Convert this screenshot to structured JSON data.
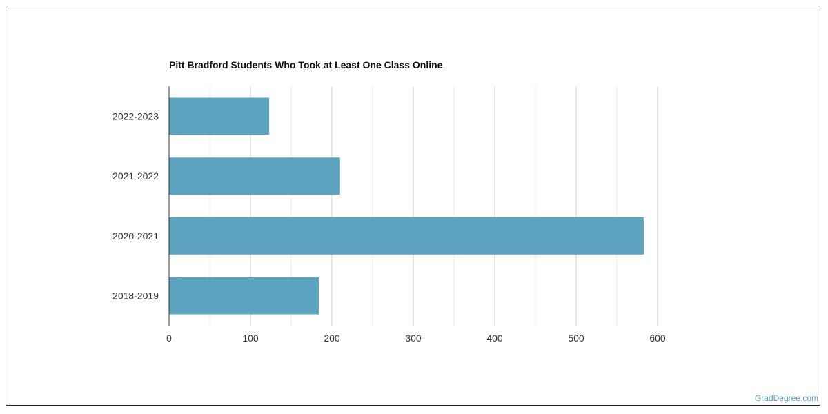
{
  "chart_data": {
    "type": "bar",
    "orientation": "horizontal",
    "title": "Pitt Bradford Students Who Took at Least One Class Online",
    "categories": [
      "2022-2023",
      "2021-2022",
      "2020-2021",
      "2018-2019"
    ],
    "values": [
      123,
      210,
      583,
      184
    ],
    "xlim": [
      0,
      600
    ],
    "x_ticks": [
      0,
      100,
      200,
      300,
      400,
      500,
      600
    ],
    "x_tick_labels": [
      "0",
      "100",
      "200",
      "300",
      "400",
      "500",
      "600"
    ],
    "xlabel": "",
    "ylabel": "",
    "grid": true,
    "bar_color": "#5ba3be"
  },
  "footer": {
    "watermark": "GradDegree.com"
  },
  "colors": {
    "bar": "#5ba3be",
    "grid": "#dddddd",
    "axis": "#333333",
    "watermark": "#5ba3be"
  }
}
